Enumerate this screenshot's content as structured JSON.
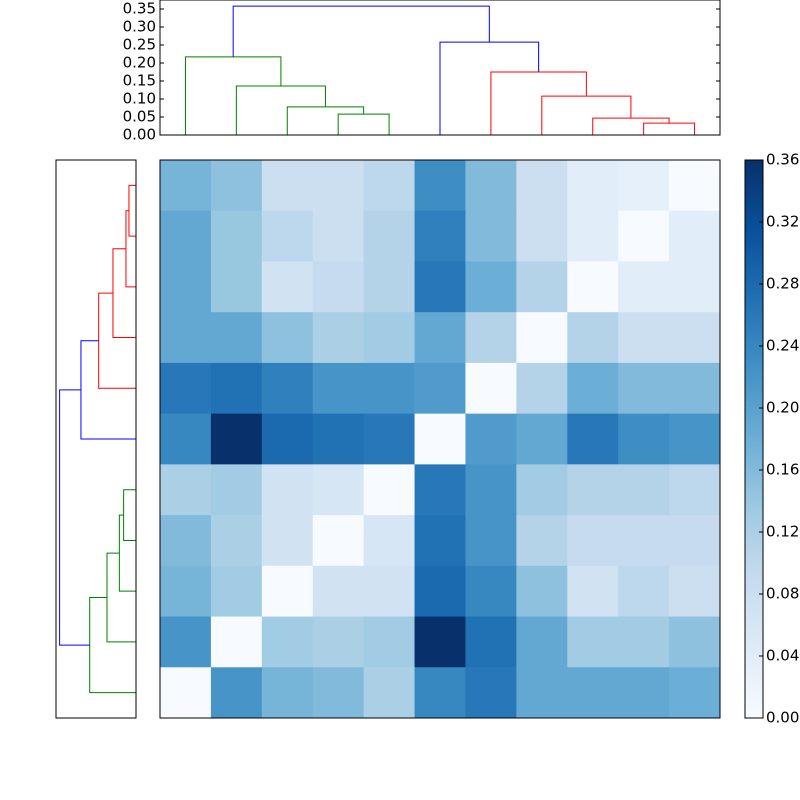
{
  "chart_data": {
    "type": "clustermap",
    "matrix": [
      [
        0.17,
        0.15,
        0.08,
        0.08,
        0.1,
        0.23,
        0.16,
        0.08,
        0.04,
        0.03,
        0.0
      ],
      [
        0.19,
        0.14,
        0.1,
        0.08,
        0.11,
        0.25,
        0.16,
        0.08,
        0.04,
        0.0,
        0.04
      ],
      [
        0.19,
        0.14,
        0.07,
        0.09,
        0.11,
        0.26,
        0.18,
        0.11,
        0.0,
        0.04,
        0.04
      ],
      [
        0.19,
        0.19,
        0.15,
        0.12,
        0.13,
        0.19,
        0.11,
        0.0,
        0.11,
        0.08,
        0.08
      ],
      [
        0.26,
        0.27,
        0.25,
        0.22,
        0.22,
        0.21,
        0.0,
        0.11,
        0.18,
        0.16,
        0.16
      ],
      [
        0.24,
        0.36,
        0.28,
        0.27,
        0.26,
        0.0,
        0.21,
        0.19,
        0.26,
        0.23,
        0.22
      ],
      [
        0.12,
        0.13,
        0.07,
        0.06,
        0.0,
        0.26,
        0.22,
        0.13,
        0.11,
        0.11,
        0.1
      ],
      [
        0.16,
        0.12,
        0.07,
        0.0,
        0.06,
        0.27,
        0.22,
        0.11,
        0.09,
        0.09,
        0.09
      ],
      [
        0.17,
        0.13,
        0.0,
        0.07,
        0.07,
        0.28,
        0.24,
        0.15,
        0.07,
        0.1,
        0.08
      ],
      [
        0.22,
        0.0,
        0.13,
        0.12,
        0.13,
        0.36,
        0.27,
        0.19,
        0.13,
        0.13,
        0.15
      ],
      [
        0.0,
        0.22,
        0.17,
        0.16,
        0.12,
        0.24,
        0.26,
        0.19,
        0.19,
        0.19,
        0.18
      ]
    ],
    "colormap": [
      "#f7fbff",
      "#deebf7",
      "#c6dbef",
      "#9ecae1",
      "#6baed6",
      "#4292c6",
      "#2171b5",
      "#08519c",
      "#08306b"
    ],
    "colorbar": {
      "lim": [
        0,
        0.36
      ],
      "ticks": [
        {
          "value": 0,
          "label": "0.00"
        },
        {
          "value": 0.04,
          "label": "0.04"
        },
        {
          "value": 0.08,
          "label": "0.08"
        },
        {
          "value": 0.12,
          "label": "0.12"
        },
        {
          "value": 0.16,
          "label": "0.16"
        },
        {
          "value": 0.2,
          "label": "0.20"
        },
        {
          "value": 0.24,
          "label": "0.24"
        },
        {
          "value": 0.28,
          "label": "0.28"
        },
        {
          "value": 0.32,
          "label": "0.32"
        },
        {
          "value": 0.36,
          "label": "0.36"
        }
      ]
    },
    "dendrogram": {
      "ylim": [
        0,
        0.375
      ],
      "yticks": [
        {
          "value": 0,
          "label": "0.00"
        },
        {
          "value": 0.05,
          "label": "0.05"
        },
        {
          "value": 0.1,
          "label": "0.10"
        },
        {
          "value": 0.15,
          "label": "0.15"
        },
        {
          "value": 0.2,
          "label": "0.20"
        },
        {
          "value": 0.25,
          "label": "0.25"
        },
        {
          "value": 0.3,
          "label": "0.30"
        },
        {
          "value": 0.35,
          "label": "0.35"
        }
      ],
      "links": [
        {
          "x": [
            3,
            3,
            4,
            4
          ],
          "y": [
            0,
            0.058,
            0.058,
            0
          ],
          "color": "#008000"
        },
        {
          "x": [
            2,
            2,
            3.5,
            3.5
          ],
          "y": [
            0,
            0.078,
            0.078,
            0.058
          ],
          "color": "#008000"
        },
        {
          "x": [
            1,
            1,
            2.75,
            2.75
          ],
          "y": [
            0,
            0.136,
            0.136,
            0.078
          ],
          "color": "#008000"
        },
        {
          "x": [
            0,
            0,
            1.875,
            1.875
          ],
          "y": [
            0,
            0.217,
            0.217,
            0.136
          ],
          "color": "#008000"
        },
        {
          "x": [
            9,
            9,
            10,
            10
          ],
          "y": [
            0,
            0.033,
            0.033,
            0
          ],
          "color": "#ff0000"
        },
        {
          "x": [
            8,
            8,
            9.5,
            9.5
          ],
          "y": [
            0,
            0.047,
            0.047,
            0.033
          ],
          "color": "#ff0000"
        },
        {
          "x": [
            7,
            7,
            8.75,
            8.75
          ],
          "y": [
            0,
            0.108,
            0.108,
            0.047
          ],
          "color": "#ff0000"
        },
        {
          "x": [
            6,
            6,
            7.875,
            7.875
          ],
          "y": [
            0,
            0.175,
            0.175,
            0.108
          ],
          "color": "#ff0000"
        },
        {
          "x": [
            5,
            5,
            6.9375,
            6.9375
          ],
          "y": [
            0,
            0.258,
            0.258,
            0.175
          ],
          "color": "#0000ff"
        },
        {
          "x": [
            0.9375,
            0.9375,
            5.96875,
            5.96875
          ],
          "y": [
            0.217,
            0.358,
            0.358,
            0.258
          ],
          "color": "#0000ff"
        }
      ]
    }
  }
}
